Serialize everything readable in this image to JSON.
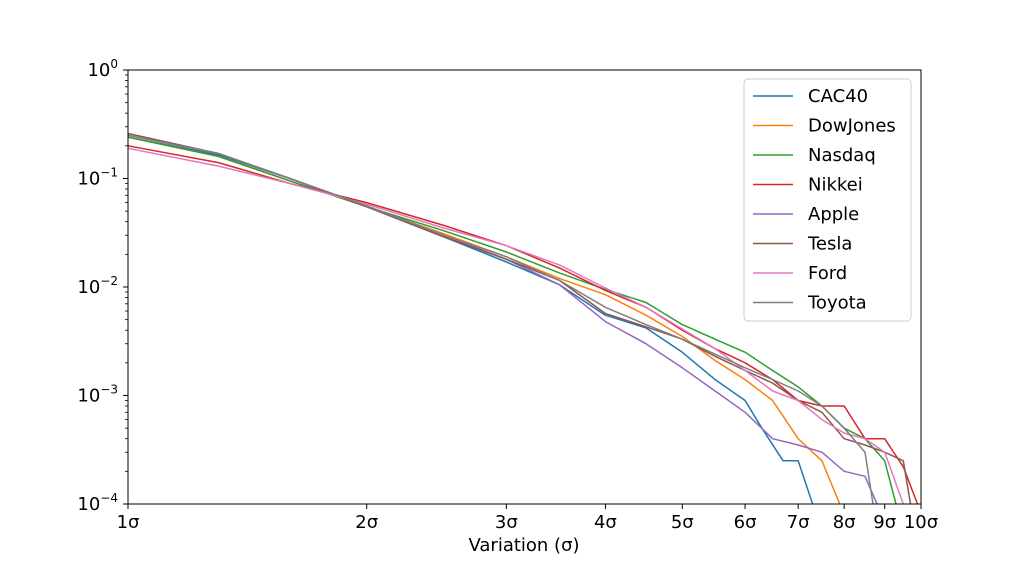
{
  "chart_data": {
    "type": "line",
    "title": "",
    "xlabel": "Variation (σ)",
    "ylabel": "",
    "x_scale": "log",
    "y_scale": "log",
    "xlim": [
      1,
      10
    ],
    "ylim": [
      0.0001,
      1
    ],
    "grid": false,
    "legend_position": "top-right",
    "x_ticks": [
      {
        "value": 1,
        "label": "1σ"
      },
      {
        "value": 2,
        "label": "2σ"
      },
      {
        "value": 3,
        "label": "3σ"
      },
      {
        "value": 4,
        "label": "4σ"
      },
      {
        "value": 5,
        "label": "5σ"
      },
      {
        "value": 6,
        "label": "6σ"
      },
      {
        "value": 7,
        "label": "7σ"
      },
      {
        "value": 8,
        "label": "8σ"
      },
      {
        "value": 9,
        "label": "9σ"
      },
      {
        "value": 10,
        "label": "10σ"
      }
    ],
    "y_ticks": [
      {
        "value": 0.0001,
        "base": "10",
        "exp": "−4"
      },
      {
        "value": 0.001,
        "base": "10",
        "exp": "−3"
      },
      {
        "value": 0.01,
        "base": "10",
        "exp": "−2"
      },
      {
        "value": 0.1,
        "base": "10",
        "exp": "−1"
      },
      {
        "value": 1,
        "base": "10",
        "exp": "0"
      }
    ],
    "series": [
      {
        "name": "CAC40",
        "color": "#1f77b4",
        "x": [
          1,
          1.3,
          1.6,
          2,
          2.5,
          3,
          3.5,
          4,
          4.5,
          5,
          5.5,
          6,
          6.3,
          6.7,
          7,
          7.3
        ],
        "y": [
          0.24,
          0.165,
          0.1,
          0.055,
          0.029,
          0.017,
          0.0105,
          0.0055,
          0.0042,
          0.0025,
          0.0014,
          0.0009,
          0.0005,
          0.00025,
          0.00025,
          0.0001
        ]
      },
      {
        "name": "DowJones",
        "color": "#ff7f0e",
        "x": [
          1,
          1.3,
          1.6,
          2,
          2.5,
          3,
          3.5,
          4,
          4.5,
          5,
          5.5,
          6,
          6.5,
          7,
          7.5,
          7.9
        ],
        "y": [
          0.24,
          0.16,
          0.095,
          0.055,
          0.031,
          0.019,
          0.012,
          0.0085,
          0.0055,
          0.0035,
          0.0021,
          0.0014,
          0.0009,
          0.0004,
          0.00025,
          0.0001
        ]
      },
      {
        "name": "Nasdaq",
        "color": "#2ca02c",
        "x": [
          1,
          1.3,
          1.6,
          2,
          2.5,
          3,
          3.5,
          4,
          4.5,
          5,
          5.5,
          6,
          6.5,
          7,
          7.5,
          8,
          8.5,
          9,
          9.3
        ],
        "y": [
          0.24,
          0.16,
          0.095,
          0.055,
          0.033,
          0.021,
          0.0135,
          0.0095,
          0.0072,
          0.0045,
          0.0033,
          0.0025,
          0.0017,
          0.0012,
          0.0008,
          0.0005,
          0.0004,
          0.00025,
          0.0001
        ]
      },
      {
        "name": "Nikkei",
        "color": "#d62728",
        "x": [
          1,
          1.3,
          1.6,
          2,
          2.5,
          3,
          3.5,
          4,
          4.5,
          5,
          5.5,
          6,
          6.5,
          7,
          7.5,
          8,
          8.5,
          9,
          9.5,
          9.9
        ],
        "y": [
          0.2,
          0.14,
          0.09,
          0.06,
          0.037,
          0.024,
          0.015,
          0.0093,
          0.0065,
          0.004,
          0.0027,
          0.002,
          0.0014,
          0.0009,
          0.0008,
          0.0008,
          0.0004,
          0.0004,
          0.00022,
          0.0001
        ]
      },
      {
        "name": "Apple",
        "color": "#9467bd",
        "x": [
          1,
          1.3,
          1.6,
          2,
          2.5,
          3,
          3.5,
          4,
          4.5,
          5,
          5.5,
          6,
          6.5,
          7,
          7.5,
          8,
          8.5,
          8.8
        ],
        "y": [
          0.25,
          0.17,
          0.1,
          0.056,
          0.03,
          0.018,
          0.0105,
          0.0048,
          0.003,
          0.0018,
          0.0011,
          0.0007,
          0.0004,
          0.00035,
          0.0003,
          0.0002,
          0.00018,
          0.0001
        ]
      },
      {
        "name": "Tesla",
        "color": "#8c564b",
        "x": [
          1,
          1.3,
          1.6,
          2,
          2.5,
          3,
          3.5,
          4,
          4.5,
          5,
          5.5,
          6,
          6.5,
          7,
          7.5,
          8,
          8.5,
          9,
          9.5,
          9.7
        ],
        "y": [
          0.26,
          0.17,
          0.1,
          0.055,
          0.029,
          0.018,
          0.0115,
          0.0057,
          0.0043,
          0.0033,
          0.0023,
          0.0017,
          0.0013,
          0.0009,
          0.0007,
          0.0004,
          0.00035,
          0.0003,
          0.00025,
          0.0001
        ]
      },
      {
        "name": "Ford",
        "color": "#e377c2",
        "x": [
          1,
          1.3,
          1.6,
          2,
          2.5,
          3,
          3.5,
          4,
          4.5,
          5,
          5.5,
          6,
          6.5,
          7,
          7.5,
          8,
          8.5,
          9,
          9.5
        ],
        "y": [
          0.19,
          0.13,
          0.09,
          0.058,
          0.035,
          0.024,
          0.016,
          0.0098,
          0.0065,
          0.0041,
          0.0027,
          0.0017,
          0.0011,
          0.0009,
          0.0006,
          0.00045,
          0.0004,
          0.0003,
          0.0001
        ]
      },
      {
        "name": "Toyota",
        "color": "#7f7f7f",
        "x": [
          1,
          1.3,
          1.6,
          2,
          2.5,
          3,
          3.5,
          4,
          4.5,
          5,
          5.5,
          6,
          6.5,
          7,
          7.5,
          8,
          8.5,
          8.7
        ],
        "y": [
          0.25,
          0.17,
          0.1,
          0.056,
          0.03,
          0.019,
          0.0115,
          0.0065,
          0.0045,
          0.0033,
          0.0024,
          0.0018,
          0.0014,
          0.0011,
          0.0008,
          0.0005,
          0.0003,
          0.0001
        ]
      }
    ]
  }
}
